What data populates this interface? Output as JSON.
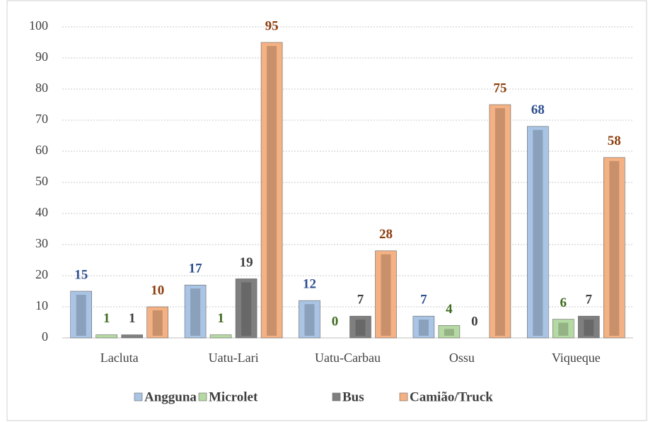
{
  "chart_data": {
    "type": "bar",
    "categories": [
      "Lacluta",
      "Uatu-Lari",
      "Uatu-Carbau",
      "Ossu",
      "Viqueque"
    ],
    "series": [
      {
        "name": "Angguna",
        "color": "#a9c4e4",
        "label_color": "#2e4f8f",
        "values": [
          15,
          17,
          12,
          7,
          68
        ]
      },
      {
        "name": "Microlet",
        "color": "#b5d9a3",
        "label_color": "#3e6b1f",
        "values": [
          1,
          1,
          0,
          4,
          6
        ]
      },
      {
        "name": "Bus",
        "color": "#7f7f7f",
        "label_color": "#404040",
        "values": [
          1,
          19,
          7,
          0,
          7
        ]
      },
      {
        "name": "Camião/Truck",
        "color": "#f4b183",
        "label_color": "#8b3d0b",
        "values": [
          10,
          95,
          28,
          75,
          58
        ]
      }
    ],
    "ylim": [
      0,
      100
    ],
    "yticks": [
      0,
      10,
      20,
      30,
      40,
      50,
      60,
      70,
      80,
      90,
      100
    ],
    "grid": true,
    "legend": "bottom"
  }
}
